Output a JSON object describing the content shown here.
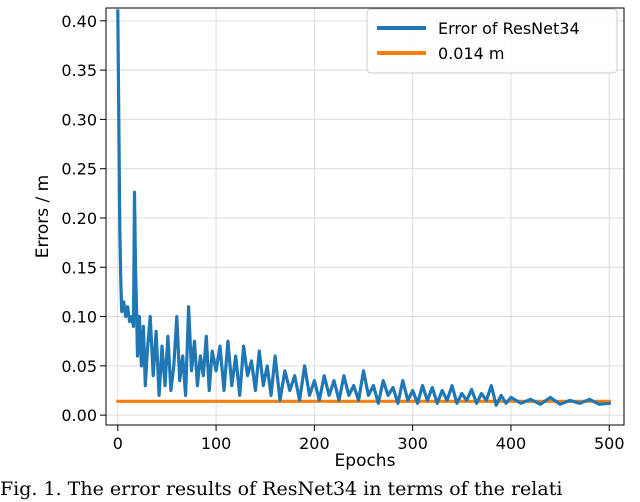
{
  "chart_data": {
    "type": "line",
    "xlabel": "Epochs",
    "ylabel": "Errors / m",
    "xlim": [
      -12,
      515
    ],
    "ylim": [
      -0.01,
      0.413
    ],
    "xticks": [
      0,
      100,
      200,
      300,
      400,
      500
    ],
    "xtick_labels": [
      "0",
      "100",
      "200",
      "300",
      "400",
      "500"
    ],
    "yticks": [
      0.0,
      0.05,
      0.1,
      0.15,
      0.2,
      0.25,
      0.3,
      0.35,
      0.4
    ],
    "ytick_labels": [
      "0.00",
      "0.05",
      "0.10",
      "0.15",
      "0.20",
      "0.25",
      "0.30",
      "0.35",
      "0.40"
    ],
    "grid": true,
    "legend_position": "top-right",
    "series": [
      {
        "name": "Error of ResNet34",
        "color": "#1f77b4",
        "x": [
          0,
          1,
          2,
          3,
          4,
          6,
          8,
          10,
          12,
          14,
          16,
          17,
          18,
          19,
          20,
          22,
          24,
          26,
          28,
          30,
          33,
          36,
          39,
          42,
          45,
          48,
          51,
          54,
          57,
          60,
          63,
          66,
          69,
          72,
          75,
          78,
          81,
          84,
          87,
          90,
          93,
          96,
          100,
          104,
          108,
          112,
          116,
          120,
          124,
          128,
          132,
          136,
          140,
          144,
          148,
          152,
          156,
          160,
          165,
          170,
          175,
          180,
          185,
          190,
          195,
          200,
          205,
          210,
          215,
          220,
          225,
          230,
          235,
          240,
          245,
          250,
          255,
          260,
          265,
          270,
          275,
          280,
          285,
          290,
          295,
          300,
          305,
          310,
          315,
          320,
          325,
          330,
          335,
          340,
          345,
          350,
          355,
          360,
          365,
          370,
          375,
          380,
          385,
          390,
          395,
          400,
          410,
          420,
          430,
          440,
          450,
          460,
          470,
          480,
          490,
          500
        ],
        "values": [
          0.41,
          0.3,
          0.19,
          0.14,
          0.105,
          0.115,
          0.1,
          0.11,
          0.095,
          0.1,
          0.09,
          0.226,
          0.15,
          0.11,
          0.06,
          0.1,
          0.05,
          0.09,
          0.03,
          0.065,
          0.1,
          0.04,
          0.085,
          0.02,
          0.07,
          0.03,
          0.08,
          0.025,
          0.05,
          0.1,
          0.035,
          0.06,
          0.02,
          0.11,
          0.045,
          0.075,
          0.03,
          0.06,
          0.04,
          0.08,
          0.025,
          0.065,
          0.045,
          0.07,
          0.025,
          0.075,
          0.03,
          0.06,
          0.02,
          0.07,
          0.04,
          0.055,
          0.025,
          0.065,
          0.03,
          0.05,
          0.02,
          0.06,
          0.015,
          0.045,
          0.025,
          0.04,
          0.015,
          0.05,
          0.02,
          0.035,
          0.015,
          0.04,
          0.02,
          0.035,
          0.015,
          0.04,
          0.02,
          0.03,
          0.015,
          0.045,
          0.02,
          0.03,
          0.012,
          0.035,
          0.02,
          0.028,
          0.012,
          0.035,
          0.015,
          0.025,
          0.012,
          0.03,
          0.015,
          0.028,
          0.012,
          0.025,
          0.015,
          0.03,
          0.012,
          0.022,
          0.015,
          0.026,
          0.012,
          0.022,
          0.015,
          0.03,
          0.01,
          0.02,
          0.012,
          0.018,
          0.012,
          0.016,
          0.011,
          0.018,
          0.011,
          0.015,
          0.012,
          0.016,
          0.011,
          0.012
        ]
      },
      {
        "name": "0.014 m",
        "color": "#ff7f0e",
        "x": [
          0,
          500
        ],
        "values": [
          0.014,
          0.014
        ]
      }
    ]
  },
  "caption": "Fig. 1.  The error results of ResNet34 in terms of the relati"
}
